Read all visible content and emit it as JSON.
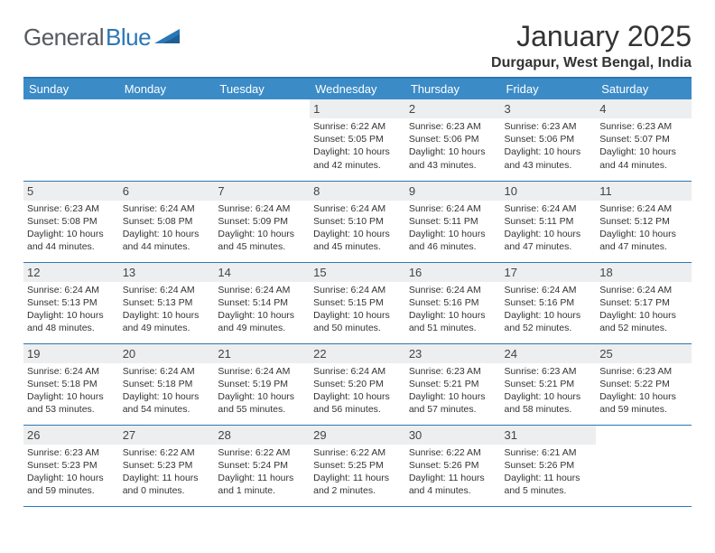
{
  "logo": {
    "part1": "General",
    "part2": "Blue"
  },
  "title": "January 2025",
  "subtitle": "Durgapur, West Bengal, India",
  "colors": {
    "header_bg": "#3b8bc7",
    "header_text": "#ffffff",
    "daynum_bg": "#eceeef",
    "top_border": "#2a77b7",
    "row_border": "#2a77b7",
    "logo_grey": "#555b60",
    "logo_blue": "#2a77b7",
    "text": "#333333"
  },
  "day_names": [
    "Sunday",
    "Monday",
    "Tuesday",
    "Wednesday",
    "Thursday",
    "Friday",
    "Saturday"
  ],
  "weeks": [
    [
      {
        "n": "",
        "sr": "",
        "ss": "",
        "dl": ""
      },
      {
        "n": "",
        "sr": "",
        "ss": "",
        "dl": ""
      },
      {
        "n": "",
        "sr": "",
        "ss": "",
        "dl": ""
      },
      {
        "n": "1",
        "sr": "Sunrise: 6:22 AM",
        "ss": "Sunset: 5:05 PM",
        "dl": "Daylight: 10 hours and 42 minutes."
      },
      {
        "n": "2",
        "sr": "Sunrise: 6:23 AM",
        "ss": "Sunset: 5:06 PM",
        "dl": "Daylight: 10 hours and 43 minutes."
      },
      {
        "n": "3",
        "sr": "Sunrise: 6:23 AM",
        "ss": "Sunset: 5:06 PM",
        "dl": "Daylight: 10 hours and 43 minutes."
      },
      {
        "n": "4",
        "sr": "Sunrise: 6:23 AM",
        "ss": "Sunset: 5:07 PM",
        "dl": "Daylight: 10 hours and 44 minutes."
      }
    ],
    [
      {
        "n": "5",
        "sr": "Sunrise: 6:23 AM",
        "ss": "Sunset: 5:08 PM",
        "dl": "Daylight: 10 hours and 44 minutes."
      },
      {
        "n": "6",
        "sr": "Sunrise: 6:24 AM",
        "ss": "Sunset: 5:08 PM",
        "dl": "Daylight: 10 hours and 44 minutes."
      },
      {
        "n": "7",
        "sr": "Sunrise: 6:24 AM",
        "ss": "Sunset: 5:09 PM",
        "dl": "Daylight: 10 hours and 45 minutes."
      },
      {
        "n": "8",
        "sr": "Sunrise: 6:24 AM",
        "ss": "Sunset: 5:10 PM",
        "dl": "Daylight: 10 hours and 45 minutes."
      },
      {
        "n": "9",
        "sr": "Sunrise: 6:24 AM",
        "ss": "Sunset: 5:11 PM",
        "dl": "Daylight: 10 hours and 46 minutes."
      },
      {
        "n": "10",
        "sr": "Sunrise: 6:24 AM",
        "ss": "Sunset: 5:11 PM",
        "dl": "Daylight: 10 hours and 47 minutes."
      },
      {
        "n": "11",
        "sr": "Sunrise: 6:24 AM",
        "ss": "Sunset: 5:12 PM",
        "dl": "Daylight: 10 hours and 47 minutes."
      }
    ],
    [
      {
        "n": "12",
        "sr": "Sunrise: 6:24 AM",
        "ss": "Sunset: 5:13 PM",
        "dl": "Daylight: 10 hours and 48 minutes."
      },
      {
        "n": "13",
        "sr": "Sunrise: 6:24 AM",
        "ss": "Sunset: 5:13 PM",
        "dl": "Daylight: 10 hours and 49 minutes."
      },
      {
        "n": "14",
        "sr": "Sunrise: 6:24 AM",
        "ss": "Sunset: 5:14 PM",
        "dl": "Daylight: 10 hours and 49 minutes."
      },
      {
        "n": "15",
        "sr": "Sunrise: 6:24 AM",
        "ss": "Sunset: 5:15 PM",
        "dl": "Daylight: 10 hours and 50 minutes."
      },
      {
        "n": "16",
        "sr": "Sunrise: 6:24 AM",
        "ss": "Sunset: 5:16 PM",
        "dl": "Daylight: 10 hours and 51 minutes."
      },
      {
        "n": "17",
        "sr": "Sunrise: 6:24 AM",
        "ss": "Sunset: 5:16 PM",
        "dl": "Daylight: 10 hours and 52 minutes."
      },
      {
        "n": "18",
        "sr": "Sunrise: 6:24 AM",
        "ss": "Sunset: 5:17 PM",
        "dl": "Daylight: 10 hours and 52 minutes."
      }
    ],
    [
      {
        "n": "19",
        "sr": "Sunrise: 6:24 AM",
        "ss": "Sunset: 5:18 PM",
        "dl": "Daylight: 10 hours and 53 minutes."
      },
      {
        "n": "20",
        "sr": "Sunrise: 6:24 AM",
        "ss": "Sunset: 5:18 PM",
        "dl": "Daylight: 10 hours and 54 minutes."
      },
      {
        "n": "21",
        "sr": "Sunrise: 6:24 AM",
        "ss": "Sunset: 5:19 PM",
        "dl": "Daylight: 10 hours and 55 minutes."
      },
      {
        "n": "22",
        "sr": "Sunrise: 6:24 AM",
        "ss": "Sunset: 5:20 PM",
        "dl": "Daylight: 10 hours and 56 minutes."
      },
      {
        "n": "23",
        "sr": "Sunrise: 6:23 AM",
        "ss": "Sunset: 5:21 PM",
        "dl": "Daylight: 10 hours and 57 minutes."
      },
      {
        "n": "24",
        "sr": "Sunrise: 6:23 AM",
        "ss": "Sunset: 5:21 PM",
        "dl": "Daylight: 10 hours and 58 minutes."
      },
      {
        "n": "25",
        "sr": "Sunrise: 6:23 AM",
        "ss": "Sunset: 5:22 PM",
        "dl": "Daylight: 10 hours and 59 minutes."
      }
    ],
    [
      {
        "n": "26",
        "sr": "Sunrise: 6:23 AM",
        "ss": "Sunset: 5:23 PM",
        "dl": "Daylight: 10 hours and 59 minutes."
      },
      {
        "n": "27",
        "sr": "Sunrise: 6:22 AM",
        "ss": "Sunset: 5:23 PM",
        "dl": "Daylight: 11 hours and 0 minutes."
      },
      {
        "n": "28",
        "sr": "Sunrise: 6:22 AM",
        "ss": "Sunset: 5:24 PM",
        "dl": "Daylight: 11 hours and 1 minute."
      },
      {
        "n": "29",
        "sr": "Sunrise: 6:22 AM",
        "ss": "Sunset: 5:25 PM",
        "dl": "Daylight: 11 hours and 2 minutes."
      },
      {
        "n": "30",
        "sr": "Sunrise: 6:22 AM",
        "ss": "Sunset: 5:26 PM",
        "dl": "Daylight: 11 hours and 4 minutes."
      },
      {
        "n": "31",
        "sr": "Sunrise: 6:21 AM",
        "ss": "Sunset: 5:26 PM",
        "dl": "Daylight: 11 hours and 5 minutes."
      },
      {
        "n": "",
        "sr": "",
        "ss": "",
        "dl": ""
      }
    ]
  ]
}
